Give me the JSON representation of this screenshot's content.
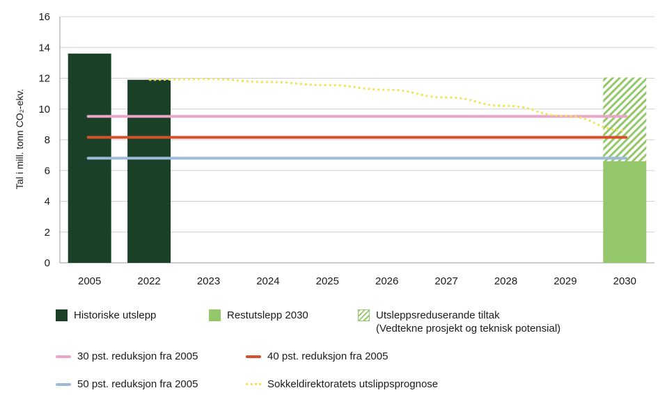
{
  "chart_data": {
    "type": "bar",
    "title": "",
    "xlabel": "",
    "ylabel": "Tal i mill. tonn CO₂-ekv.",
    "ylim": [
      0,
      16
    ],
    "yticks": [
      0,
      2,
      4,
      6,
      8,
      10,
      12,
      14,
      16
    ],
    "grid": true,
    "categories": [
      "2005",
      "2022",
      "2023",
      "2024",
      "2025",
      "2026",
      "2027",
      "2028",
      "2029",
      "2030"
    ],
    "bars": [
      {
        "name": "Historiske utslepp",
        "color": "#1a4128",
        "values": [
          13.6,
          11.9,
          null,
          null,
          null,
          null,
          null,
          null,
          null,
          null
        ]
      },
      {
        "name": "Restutslepp 2030",
        "color": "#94c769",
        "values": [
          null,
          null,
          null,
          null,
          null,
          null,
          null,
          null,
          null,
          6.6
        ]
      },
      {
        "name": "Utsleppsreduserande tiltak",
        "name_line2": "(Vedtekne prosjekt og teknisk potensial)",
        "color": "#94c769",
        "pattern": "hatched",
        "stacked_on": "Restutslepp 2030",
        "values": [
          null,
          null,
          null,
          null,
          null,
          null,
          null,
          null,
          null,
          5.45
        ]
      }
    ],
    "lines": [
      {
        "name": "30 pst. reduksjon fra 2005",
        "color": "#eba5c9",
        "value": 9.52
      },
      {
        "name": "40 pst. reduksjon fra 2005",
        "color": "#d4512a",
        "value": 8.16
      },
      {
        "name": "50 pst. reduksjon fra 2005",
        "color": "#9bbbd9",
        "value": 6.8
      }
    ],
    "forecast": {
      "name": "Sokkeldirektoratets utslippsprognose",
      "color": "#efe45a",
      "style": "dotted",
      "x": [
        "2022",
        "2023",
        "2024",
        "2025",
        "2026",
        "2027",
        "2028",
        "2029",
        "2030"
      ],
      "y": [
        11.9,
        11.95,
        11.75,
        11.55,
        11.25,
        10.75,
        10.2,
        9.55,
        8.6
      ]
    },
    "legend_position": "bottom"
  }
}
